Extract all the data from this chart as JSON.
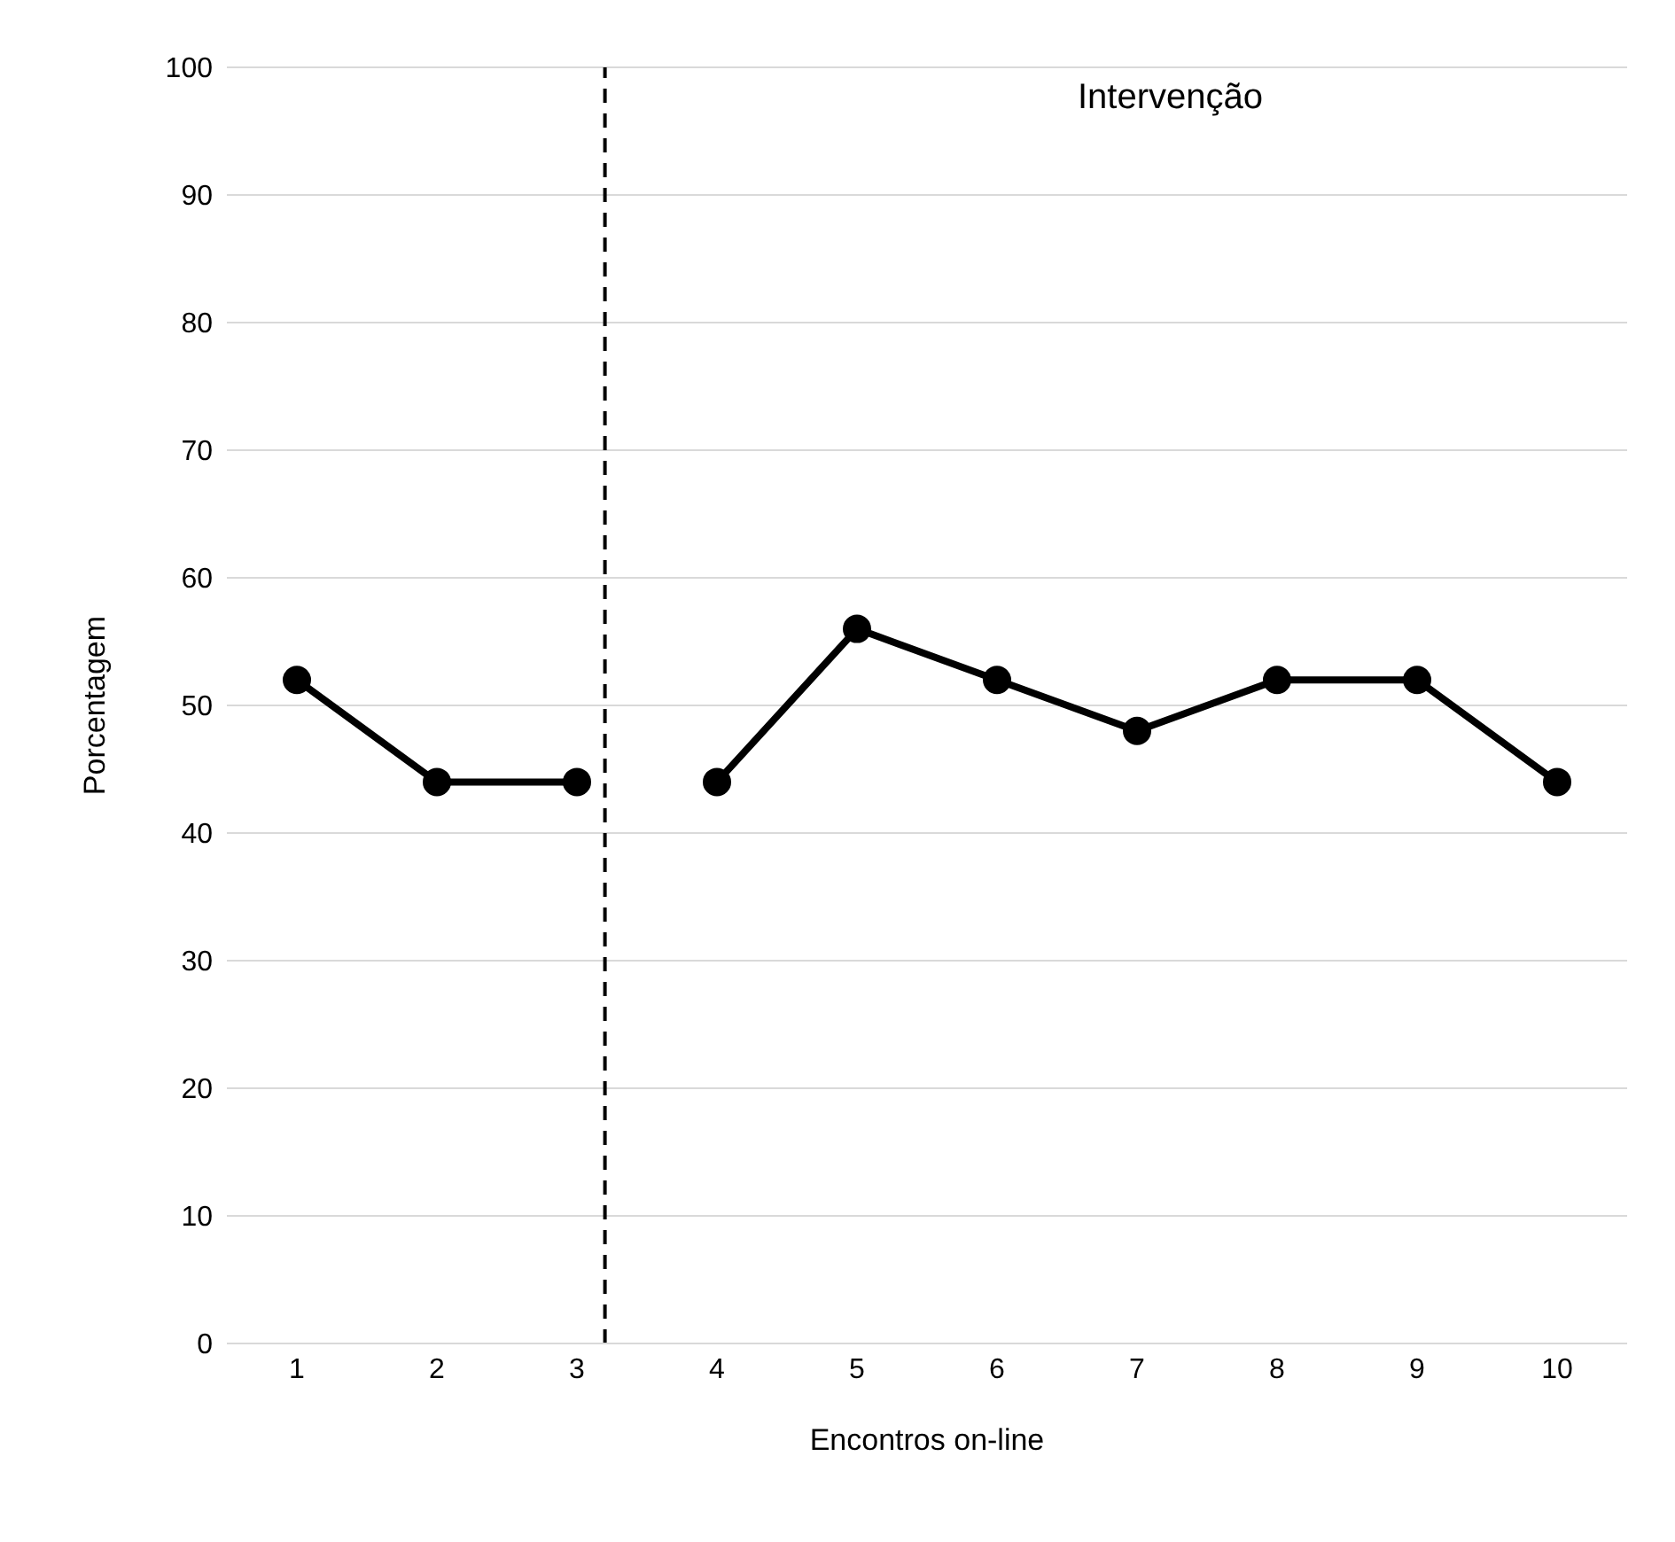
{
  "chart_data": {
    "type": "line",
    "xlabel": "Encontros on-line",
    "ylabel": "Porcentagem",
    "x": [
      1,
      2,
      3,
      4,
      5,
      6,
      7,
      8,
      9,
      10
    ],
    "xlim": [
      0.5,
      10.5
    ],
    "xticks": [
      1,
      2,
      3,
      4,
      5,
      6,
      7,
      8,
      9,
      10
    ],
    "ylim": [
      0,
      100
    ],
    "yticks": [
      0,
      10,
      20,
      30,
      40,
      50,
      60,
      70,
      80,
      90,
      100
    ],
    "grid": "y",
    "marker": "circle",
    "line_style": "solid",
    "series": [
      {
        "color": "#000000",
        "values": [
          52,
          44,
          44,
          null,
          null,
          null,
          null,
          null,
          null,
          null
        ]
      },
      {
        "color": "#000000",
        "values": [
          null,
          null,
          null,
          44,
          56,
          52,
          48,
          52,
          52,
          44
        ]
      }
    ],
    "ref_lines": [
      {
        "axis": "x",
        "value": 3.2,
        "color": "#000000",
        "line_style": "dashed"
      }
    ],
    "annotations": [
      "Intervenção"
    ]
  }
}
